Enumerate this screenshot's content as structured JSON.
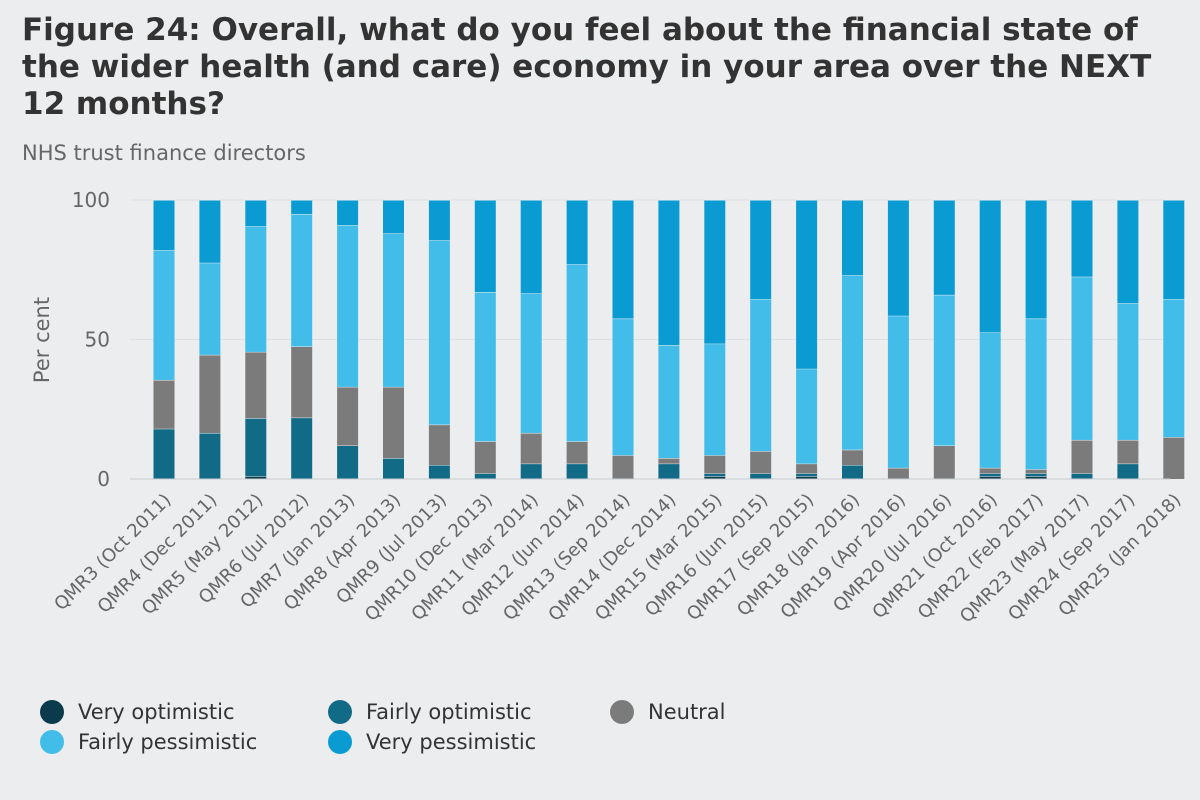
{
  "title": "Figure 24: Overall, what do you feel about the financial state of the wider health (and care) economy in your area over the NEXT 12 months?",
  "subtitle": "NHS trust finance directors",
  "chart_data": {
    "type": "bar",
    "stacked": true,
    "ylabel": "Per cent",
    "xlabel": "",
    "ylim": [
      0,
      100
    ],
    "yticks": [
      0,
      50,
      100
    ],
    "grid": true,
    "legend_position": "bottom",
    "categories": [
      "QMR3 (Oct 2011)",
      "QMR4 (Dec 2011)",
      "QMR5 (May 2012)",
      "QMR6 (Jul 2012)",
      "QMR7 (Jan 2013)",
      "QMR8 (Apr 2013)",
      "QMR9 (Jul 2013)",
      "QMR10 (Dec 2013)",
      "QMR11 (Mar 2014)",
      "QMR12 (Jun 2014)",
      "QMR13 (Sep 2014)",
      "QMR14 (Dec 2014)",
      "QMR15 (Mar 2015)",
      "QMR16 (Jun 2015)",
      "QMR17 (Sep 2015)",
      "QMR18 (Jan 2016)",
      "QMR19 (Apr 2016)",
      "QMR20 (Jul 2016)",
      "QMR21 (Oct 2016)",
      "QMR22 (Feb 2017)",
      "QMR23 (May 2017)",
      "QMR24 (Sep 2017)",
      "QMR25 (Jan 2018)"
    ],
    "series": [
      {
        "name": "Very optimistic",
        "color": "#0b3a4d",
        "values": [
          0,
          0,
          1,
          0,
          0,
          0,
          0,
          0,
          0,
          0,
          0,
          0,
          1,
          0,
          1,
          0,
          0,
          0,
          1,
          1,
          0,
          0,
          0
        ]
      },
      {
        "name": "Fairly optimistic",
        "color": "#126b86",
        "values": [
          18,
          16.5,
          21,
          22,
          12,
          7.5,
          5,
          2,
          5.5,
          5.5,
          0,
          5.5,
          1,
          2,
          1,
          5,
          0,
          0,
          1,
          1,
          2,
          5.5,
          0
        ]
      },
      {
        "name": "Neutral",
        "color": "#7b7b7b",
        "values": [
          17.5,
          28,
          24,
          25.5,
          21,
          25.5,
          14.5,
          11.5,
          11,
          8,
          8.5,
          2,
          6.5,
          8,
          3.5,
          5.5,
          4,
          12,
          2,
          1.5,
          12,
          8.5,
          15
        ]
      },
      {
        "name": "Fairly pessimistic",
        "color": "#42bce9",
        "values": [
          46.5,
          33,
          45.5,
          47.5,
          58,
          55,
          66,
          53.5,
          50,
          63.5,
          49,
          40.5,
          40,
          54.5,
          34,
          62.5,
          54.5,
          54,
          48.5,
          54,
          58.5,
          49,
          49.5
        ]
      },
      {
        "name": "Very pessimistic",
        "color": "#0a9bd2",
        "values": [
          18,
          22.5,
          9.5,
          5,
          9,
          12,
          14.5,
          33,
          33.5,
          23,
          42.5,
          52,
          51.5,
          35.5,
          60.5,
          27,
          41.5,
          34,
          47.5,
          42.5,
          27.5,
          37,
          35.5
        ]
      }
    ]
  }
}
